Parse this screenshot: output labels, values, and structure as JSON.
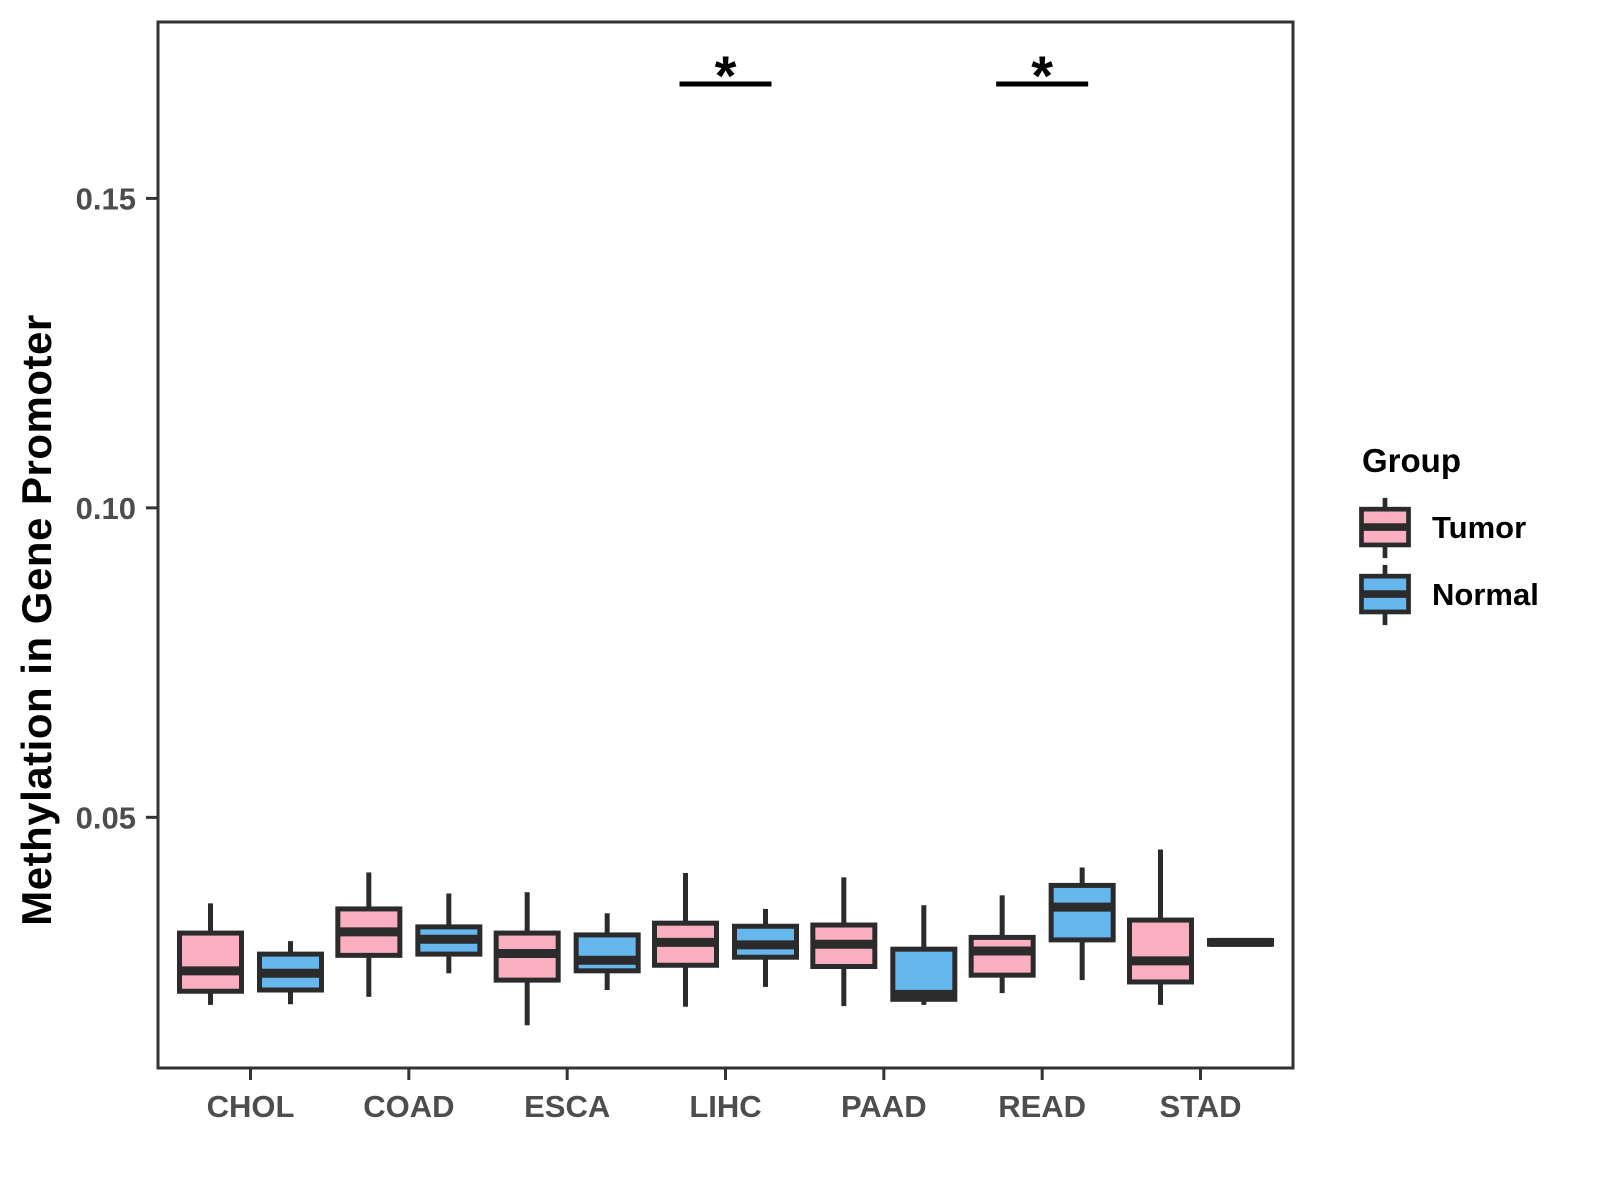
{
  "figure": {
    "background": "#FFFFFF"
  },
  "chart_data": {
    "type": "boxplot",
    "title": "",
    "xlabel": "",
    "ylabel": "Methylation in Gene Promoter",
    "categories": [
      "CHOL",
      "COAD",
      "ESCA",
      "LIHC",
      "PAAD",
      "READ",
      "STAD"
    ],
    "y_ticks": [
      0.05,
      0.1,
      0.15
    ],
    "y_tick_labels": [
      "0.05",
      "0.10",
      "0.15"
    ],
    "ylim": [
      0.0095,
      0.1785
    ],
    "grid": false,
    "legend": {
      "title": "Group",
      "position": "right",
      "entries": [
        {
          "label": "Tumor",
          "color": "#F9AFBF"
        },
        {
          "label": "Normal",
          "color": "#67B7EF"
        }
      ]
    },
    "series": [
      {
        "name": "Tumor",
        "color": "#F9AFBF",
        "boxes": [
          {
            "category": "CHOL",
            "whisker_low": 0.0197,
            "q1": 0.0219,
            "median": 0.0252,
            "q3": 0.0313,
            "whisker_high": 0.0361
          },
          {
            "category": "COAD",
            "whisker_low": 0.021,
            "q1": 0.0277,
            "median": 0.0315,
            "q3": 0.0352,
            "whisker_high": 0.0411
          },
          {
            "category": "ESCA",
            "whisker_low": 0.0164,
            "q1": 0.0237,
            "median": 0.028,
            "q3": 0.0313,
            "whisker_high": 0.0379
          },
          {
            "category": "LIHC",
            "whisker_low": 0.0194,
            "q1": 0.0261,
            "median": 0.0298,
            "q3": 0.0329,
            "whisker_high": 0.041
          },
          {
            "category": "PAAD",
            "whisker_low": 0.0195,
            "q1": 0.0259,
            "median": 0.0295,
            "q3": 0.0326,
            "whisker_high": 0.0403
          },
          {
            "category": "READ",
            "whisker_low": 0.0216,
            "q1": 0.0245,
            "median": 0.0284,
            "q3": 0.0306,
            "whisker_high": 0.0374
          },
          {
            "category": "STAD",
            "whisker_low": 0.0197,
            "q1": 0.0234,
            "median": 0.0268,
            "q3": 0.0334,
            "whisker_high": 0.0448
          }
        ]
      },
      {
        "name": "Normal",
        "color": "#67B7EF",
        "boxes": [
          {
            "category": "CHOL",
            "whisker_low": 0.0198,
            "q1": 0.0221,
            "median": 0.0248,
            "q3": 0.0279,
            "whisker_high": 0.03
          },
          {
            "category": "COAD",
            "whisker_low": 0.0248,
            "q1": 0.0279,
            "median": 0.0303,
            "q3": 0.0323,
            "whisker_high": 0.0377
          },
          {
            "category": "ESCA",
            "whisker_low": 0.0221,
            "q1": 0.0252,
            "median": 0.0269,
            "q3": 0.031,
            "whisker_high": 0.0345
          },
          {
            "category": "LIHC",
            "whisker_low": 0.0226,
            "q1": 0.0274,
            "median": 0.0294,
            "q3": 0.0324,
            "whisker_high": 0.0352
          },
          {
            "category": "PAAD",
            "whisker_low": 0.0197,
            "q1": 0.0206,
            "median": 0.0214,
            "q3": 0.0287,
            "whisker_high": 0.0358
          },
          {
            "category": "READ",
            "whisker_low": 0.0237,
            "q1": 0.0302,
            "median": 0.0355,
            "q3": 0.039,
            "whisker_high": 0.0419
          },
          {
            "category": "STAD",
            "whisker_low": 0.0292,
            "q1": 0.0295,
            "median": 0.0298,
            "q3": 0.0301,
            "whisker_high": 0.0305
          }
        ]
      }
    ],
    "significance": [
      {
        "category": "LIHC",
        "label": "*"
      },
      {
        "category": "READ",
        "label": "*"
      }
    ],
    "style": {
      "box_stroke": "#2B2B2B",
      "panel_border": "#333333",
      "tick_color": "#333333",
      "tick_label_color": "#4D4D4D",
      "annotation_color": "#000000"
    }
  }
}
